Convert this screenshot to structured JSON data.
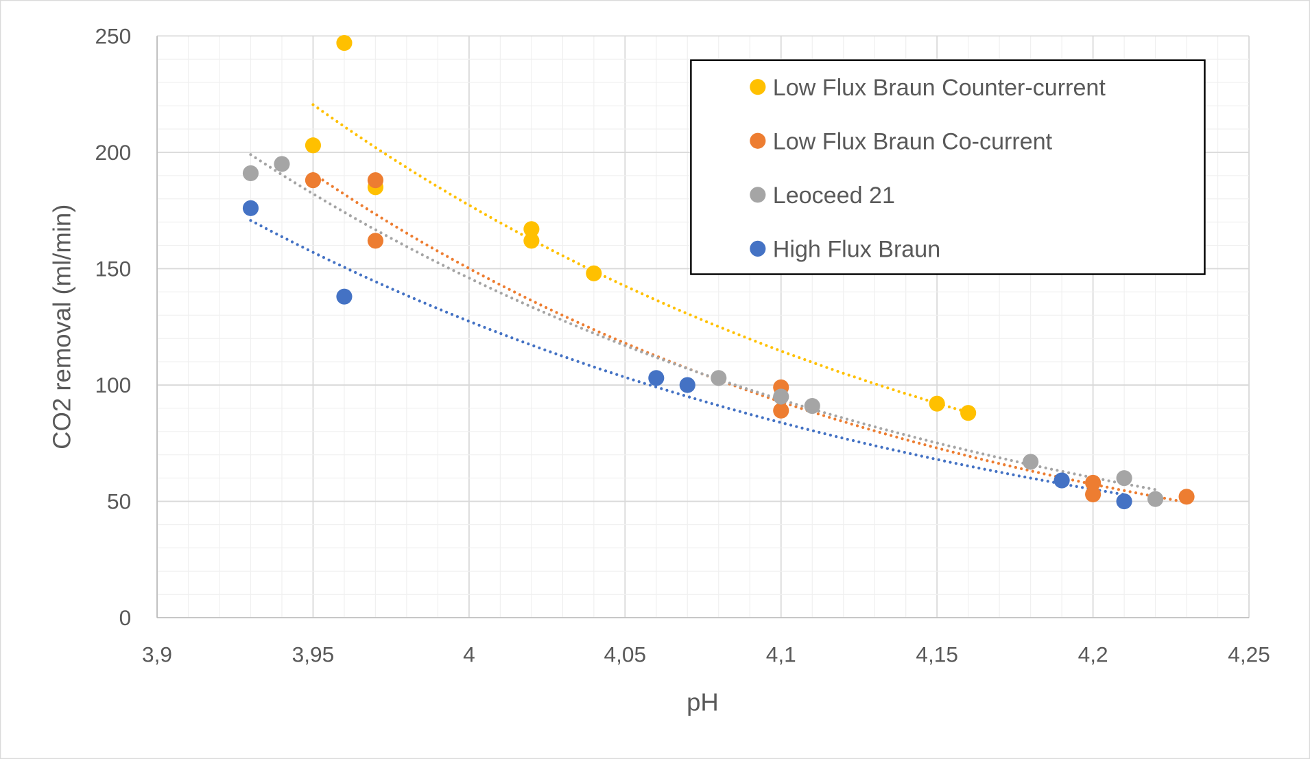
{
  "chart_data": {
    "type": "scatter",
    "title": "",
    "xlabel": "pH",
    "ylabel": "CO2 removal (ml/min)",
    "xlim": [
      3.9,
      4.25
    ],
    "ylim": [
      0,
      250
    ],
    "x_ticks": [
      "3,9",
      "3,95",
      "4",
      "4,05",
      "4,1",
      "4,15",
      "4,2",
      "4,25"
    ],
    "y_ticks": [
      "0",
      "50",
      "100",
      "150",
      "200",
      "250"
    ],
    "grid": {
      "major": true,
      "minor": true
    },
    "legend_position": "top-right",
    "trendline": "exponential, dotted",
    "series": [
      {
        "name": "Low Flux Braun Counter-current",
        "color": "#FFC000",
        "points": [
          [
            3.95,
            203
          ],
          [
            3.96,
            247
          ],
          [
            3.97,
            185
          ],
          [
            4.02,
            167
          ],
          [
            4.02,
            162
          ],
          [
            4.04,
            148
          ],
          [
            4.15,
            92
          ],
          [
            4.16,
            88
          ]
        ]
      },
      {
        "name": "Low Flux Braun Co-current",
        "color": "#ED7D31",
        "points": [
          [
            3.95,
            188
          ],
          [
            3.97,
            188
          ],
          [
            3.97,
            162
          ],
          [
            4.1,
            99
          ],
          [
            4.1,
            89
          ],
          [
            4.2,
            58
          ],
          [
            4.2,
            53
          ],
          [
            4.23,
            52
          ]
        ]
      },
      {
        "name": "Leoceed 21",
        "color": "#A5A5A5",
        "points": [
          [
            3.93,
            191
          ],
          [
            3.94,
            195
          ],
          [
            4.08,
            103
          ],
          [
            4.1,
            95
          ],
          [
            4.11,
            91
          ],
          [
            4.18,
            67
          ],
          [
            4.21,
            60
          ],
          [
            4.22,
            51
          ]
        ]
      },
      {
        "name": "High Flux Braun",
        "color": "#4472C4",
        "points": [
          [
            3.93,
            176
          ],
          [
            3.96,
            138
          ],
          [
            4.06,
            103
          ],
          [
            4.07,
            100
          ],
          [
            4.19,
            59
          ],
          [
            4.21,
            50
          ]
        ]
      }
    ]
  }
}
